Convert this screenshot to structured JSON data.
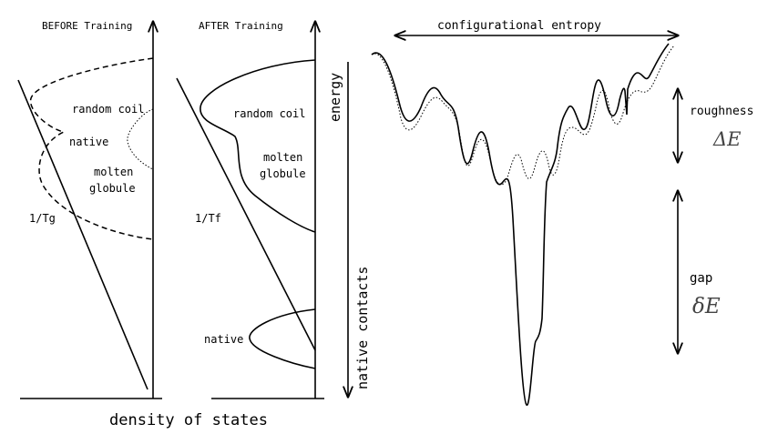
{
  "before_panel": {
    "title": "BEFORE Training",
    "labels": {
      "random_coil": "random coil",
      "native": "native",
      "molten_globule_line1": "molten",
      "molten_globule_line2": "globule",
      "temperature": "1/Tg"
    }
  },
  "after_panel": {
    "title": "AFTER Training",
    "labels": {
      "random_coil": "random coil",
      "molten_globule_line1": "molten",
      "molten_globule_line2": "globule",
      "temperature": "1/Tf",
      "native": "native"
    }
  },
  "axes": {
    "energy": "energy",
    "native_contacts": "native contacts",
    "density_of_states": "density of states"
  },
  "landscape": {
    "configurational_entropy": "configurational entropy",
    "roughness_label": "roughness",
    "roughness_symbol": "ΔE",
    "gap_label": "gap",
    "gap_symbol": "δE"
  }
}
